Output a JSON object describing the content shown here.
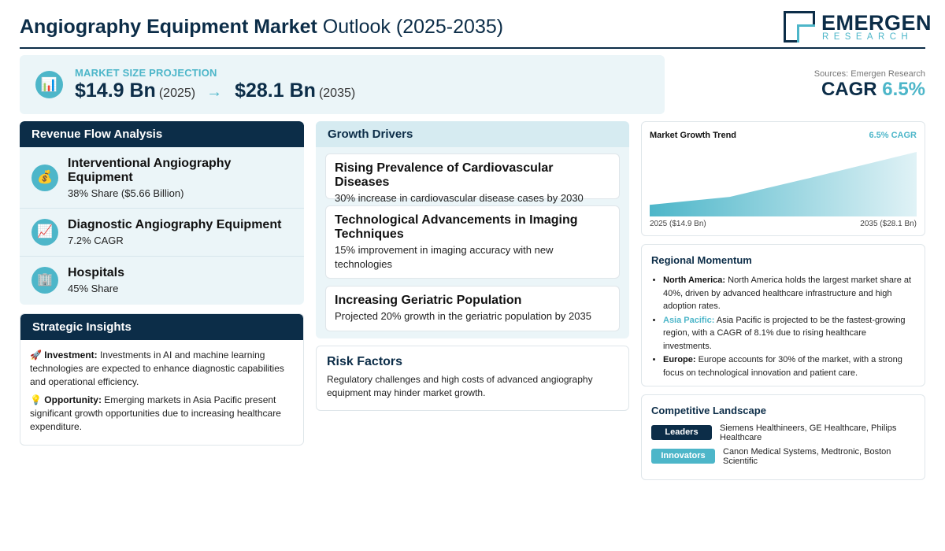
{
  "header": {
    "title_bold": "Angiography Equipment Market",
    "title_rest": "Outlook (2025-2035)",
    "logo_name": "EMERGEN",
    "logo_sub": "RESEARCH"
  },
  "projection": {
    "icon": "bar-chart-icon",
    "label": "MARKET SIZE PROJECTION",
    "start_value": "$14.9 Bn",
    "start_year": "(2025)",
    "arrow": "→",
    "end_value": "$28.1 Bn",
    "end_year": "(2035)"
  },
  "sources": "Sources: Emergen Research",
  "cagr": {
    "label": "CAGR",
    "value": "6.5%"
  },
  "revenue": {
    "title": "Revenue Flow Analysis",
    "items": [
      {
        "icon": "money-bag-icon",
        "glyph": "💰",
        "name": "Interventional Angiography Equipment",
        "sub": "38% Share ($5.66 Billion)"
      },
      {
        "icon": "trend-up-icon",
        "glyph": "📈",
        "name": "Diagnostic Angiography Equipment",
        "sub": "7.2% CAGR"
      },
      {
        "icon": "hospital-icon",
        "glyph": "🏢",
        "name": "Hospitals",
        "sub": "45% Share"
      }
    ]
  },
  "insights": {
    "title": "Strategic Insights",
    "items": [
      {
        "icon": "rocket-icon",
        "glyph": "🚀",
        "label": "Investment:",
        "text": "Investments in AI and machine learning technologies are expected to enhance diagnostic capabilities and operational efficiency."
      },
      {
        "icon": "lightbulb-icon",
        "glyph": "💡",
        "label": "Opportunity:",
        "text": "Emerging markets in Asia Pacific present significant growth opportunities due to increasing healthcare expenditure."
      }
    ]
  },
  "drivers": {
    "title": "Growth Drivers",
    "items": [
      {
        "title": "Rising Prevalence of Cardiovascular Diseases",
        "sub": "30% increase in cardiovascular disease cases by 2030"
      },
      {
        "title": "Technological Advancements in Imaging Techniques",
        "sub": "15% improvement in imaging accuracy with new technologies"
      },
      {
        "title": "Increasing Geriatric Population",
        "sub": "Projected 20% growth in the geriatric population by 2035"
      }
    ]
  },
  "risk": {
    "title": "Risk Factors",
    "text": "Regulatory challenges and high costs of advanced angiography equipment may hinder market growth."
  },
  "trend": {
    "title": "Market Growth Trend",
    "cagr_label": "6.5% CAGR",
    "left_label": "2025 ($14.9 Bn)",
    "right_label": "2035 ($28.1 Bn)",
    "colors": {
      "fill_start": "#4db6c9",
      "fill_end": "#e0f2f6"
    }
  },
  "chart_data": {
    "type": "area",
    "x": [
      2025,
      2028,
      2031,
      2035
    ],
    "values": [
      14.9,
      16.9,
      21.6,
      28.1
    ],
    "title": "Market Growth Trend",
    "xlabel": "",
    "ylabel": "",
    "ylim": [
      12,
      28.5
    ],
    "grid": false
  },
  "regional": {
    "title": "Regional Momentum",
    "items": [
      {
        "region": "North America:",
        "text": "North America holds the largest market share at 40%, driven by advanced healthcare infrastructure and high adoption rates.",
        "highlight": false
      },
      {
        "region": "Asia Pacific:",
        "text": "Asia Pacific is projected to be the fastest-growing region, with a CAGR of 8.1% due to rising healthcare investments.",
        "highlight": true
      },
      {
        "region": "Europe:",
        "text": "Europe accounts for 30% of the market, with a strong focus on technological innovation and patient care.",
        "highlight": false
      }
    ]
  },
  "competitive": {
    "title": "Competitive Landscape",
    "leaders_label": "Leaders",
    "leaders_text": "Siemens Healthineers, GE Healthcare, Philips Healthcare",
    "innovators_label": "Innovators",
    "innovators_text": "Canon Medical Systems, Medtronic, Boston Scientific"
  },
  "colors": {
    "navy": "#0c2d48",
    "teal": "#4db6c9",
    "panel_bg": "#ebf5f8"
  }
}
